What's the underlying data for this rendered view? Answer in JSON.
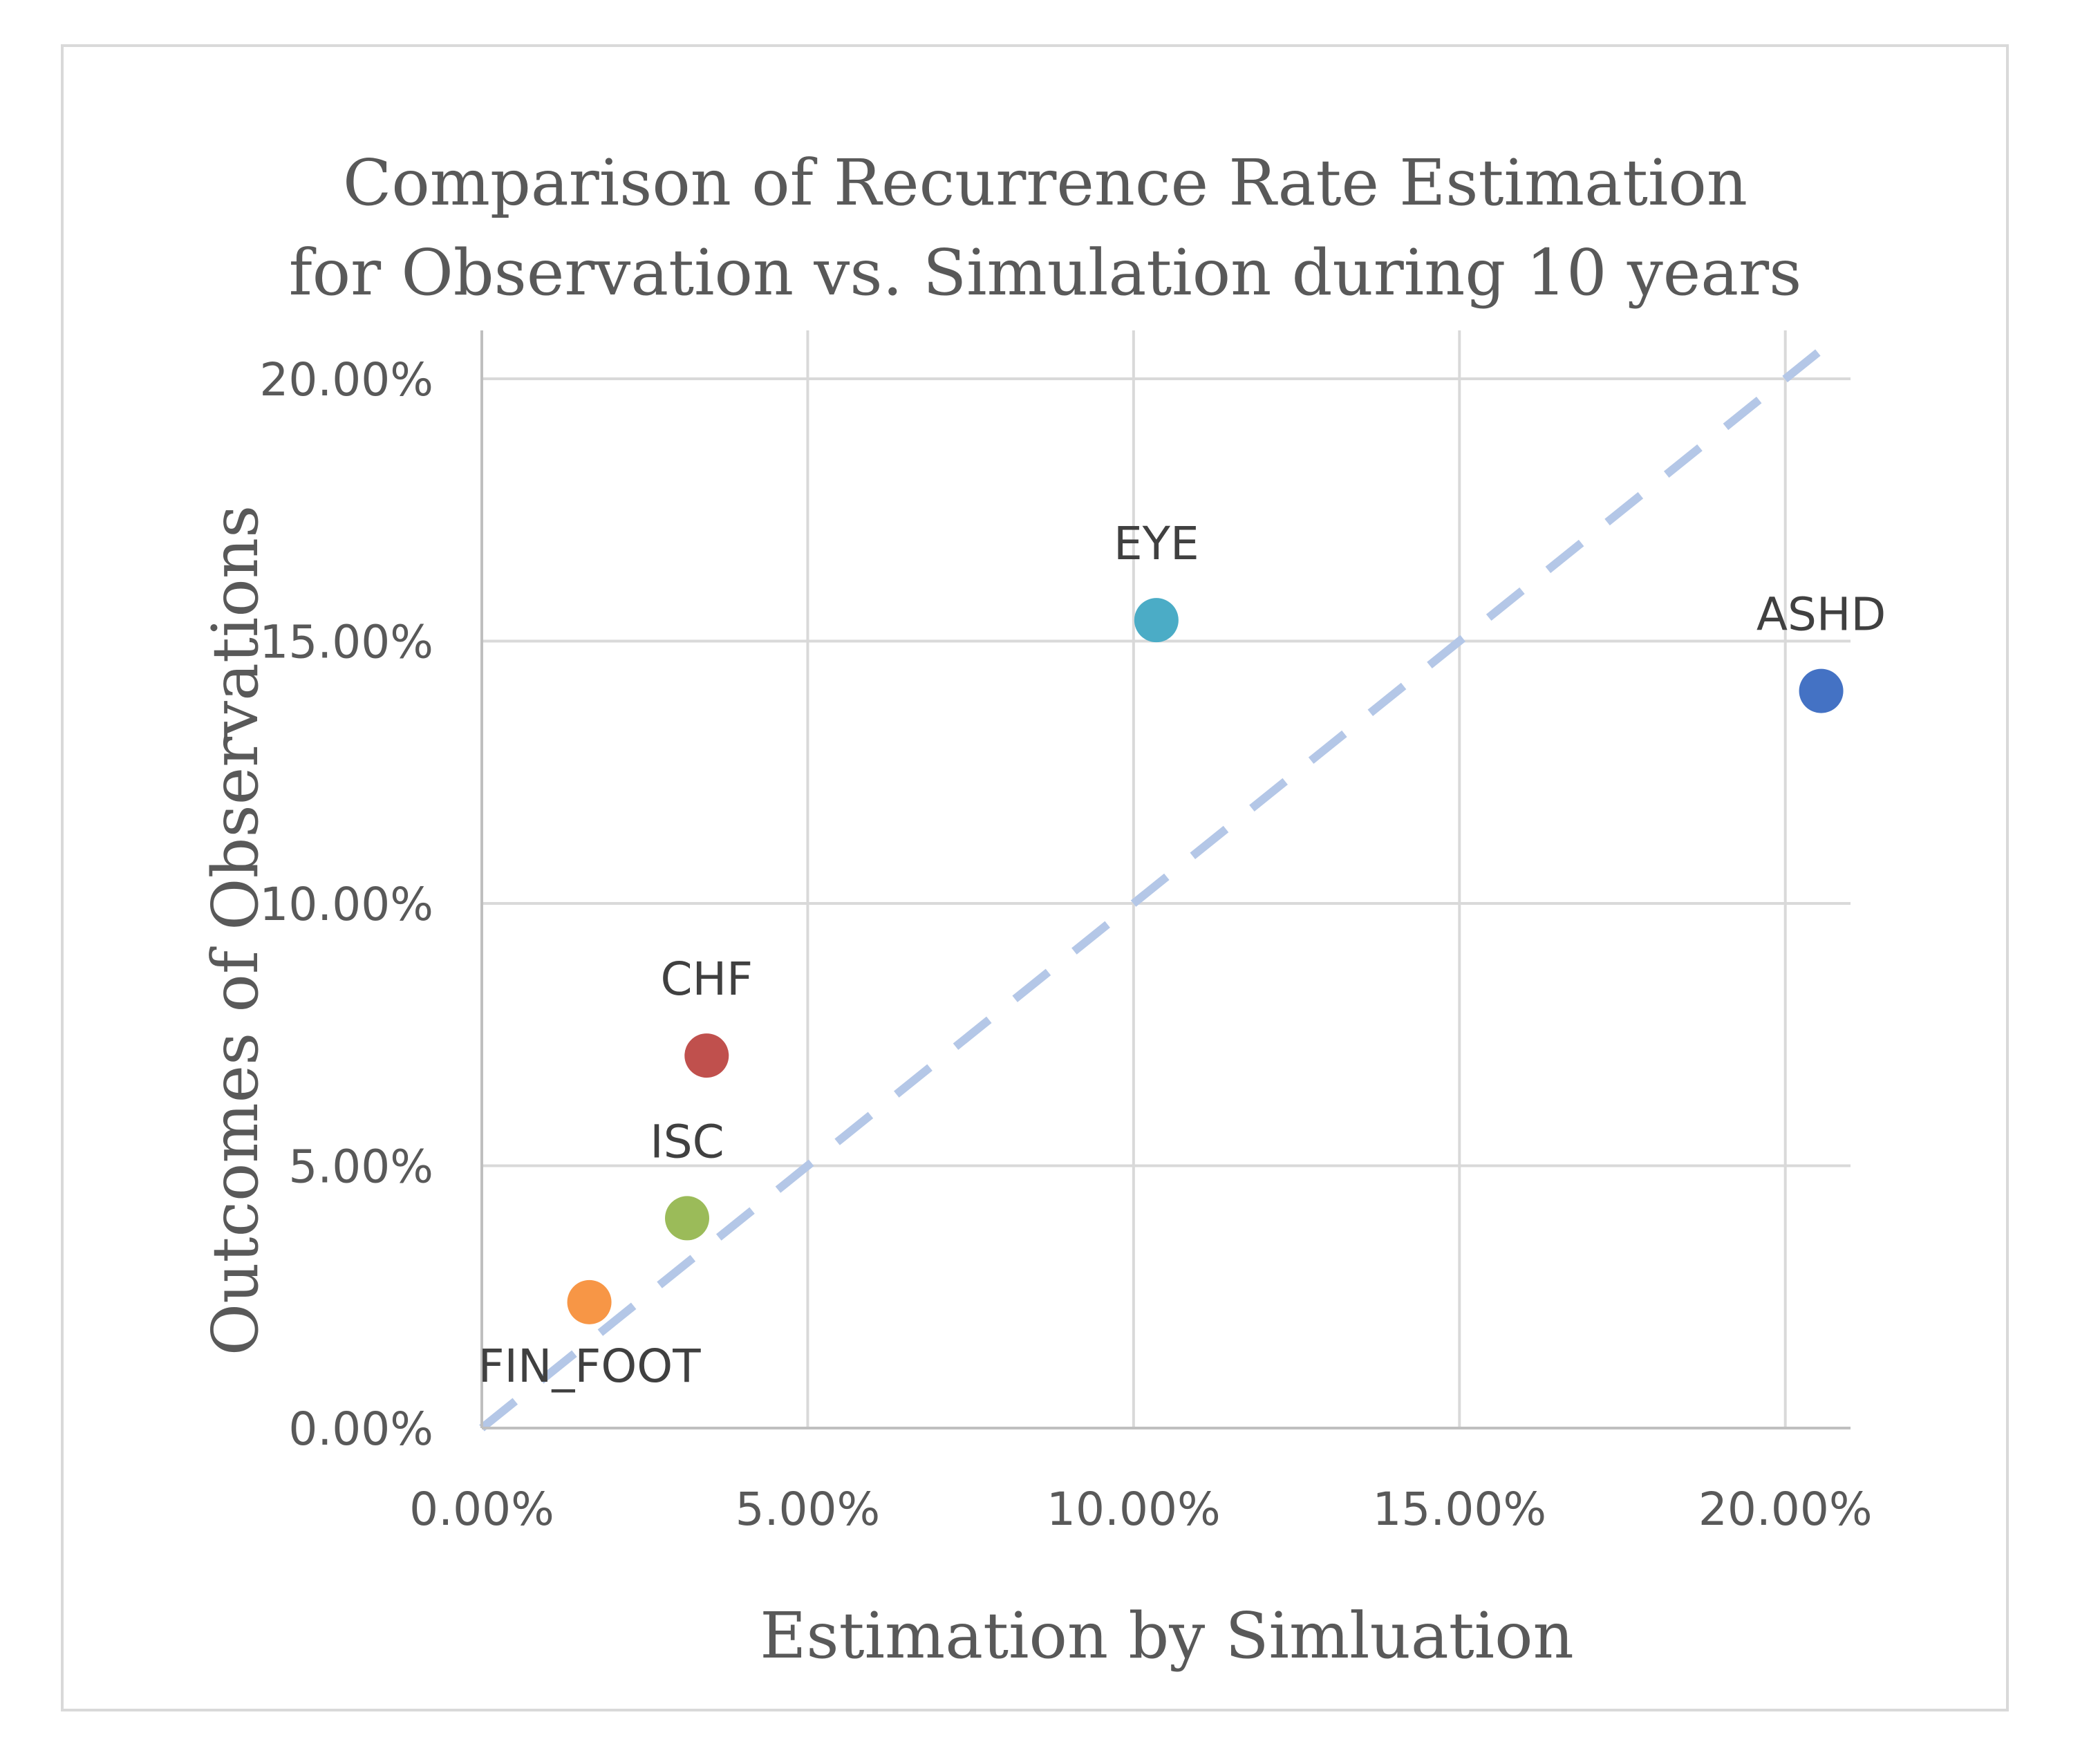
{
  "chart_data": {
    "type": "scatter",
    "title_lines": [
      "Comparison of Recurrence Rate Estimation",
      "for Observation vs. Simulation during 10 years"
    ],
    "xlabel": "Estimation by Simluation",
    "ylabel": "Outcomes of Observations",
    "xlim": [
      0,
      0.21
    ],
    "ylim": [
      0,
      0.2
    ],
    "xticks": [
      0,
      0.05,
      0.1,
      0.15,
      0.2
    ],
    "yticks": [
      0,
      0.05,
      0.1,
      0.15,
      0.2
    ],
    "xtick_labels": [
      "0.00%",
      "5.00%",
      "10.00%",
      "15.00%",
      "20.00%"
    ],
    "ytick_labels": [
      "0.00%",
      "5.00%",
      "10.00%",
      "15.00%",
      "20.00%"
    ],
    "grid": true,
    "reference_line": {
      "from": [
        0,
        0
      ],
      "to": [
        0.205,
        0.205
      ],
      "style": "dashed",
      "color": "#b4c7e7"
    },
    "points": [
      {
        "label": "ASHD",
        "x": 0.2055,
        "y": 0.1405,
        "color": "#4472c4",
        "label_position": "above"
      },
      {
        "label": "EYE",
        "x": 0.1035,
        "y": 0.154,
        "color": "#4bacc6",
        "label_position": "above"
      },
      {
        "label": "CHF",
        "x": 0.0345,
        "y": 0.071,
        "color": "#c0504d",
        "label_position": "above"
      },
      {
        "label": "ISC",
        "x": 0.0315,
        "y": 0.04,
        "color": "#9bbb59",
        "label_position": "above"
      },
      {
        "label": "FIN_FOOT",
        "x": 0.0165,
        "y": 0.024,
        "color": "#f79646",
        "label_position": "below"
      }
    ]
  }
}
